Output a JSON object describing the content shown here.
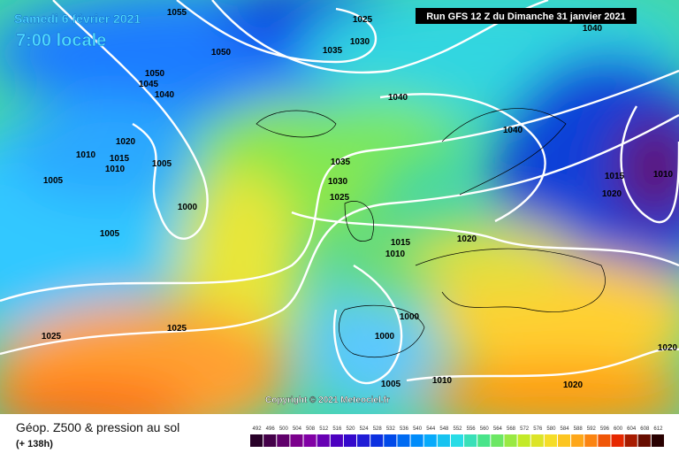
{
  "header": {
    "date": "Samedi 6 février 2021",
    "time": "7:00 locale",
    "run": "Run GFS 12 Z du Dimanche 31 janvier 2021"
  },
  "map": {
    "isobar_labels": [
      "1055",
      "1025",
      "1030",
      "1035",
      "1050",
      "1040",
      "1050",
      "1045",
      "1040",
      "1040",
      "1040",
      "1020",
      "1010",
      "1015",
      "1010",
      "1005",
      "1005",
      "1000",
      "1005",
      "1035",
      "1030",
      "1025",
      "1015",
      "1010",
      "1020",
      "1020",
      "1015",
      "1010",
      "1000",
      "1000",
      "1025",
      "1025",
      "1020",
      "1005",
      "1010",
      "1020"
    ],
    "copyright": "Copyright © 2021 Meteociel.fr"
  },
  "legend": {
    "title": "Géop. Z500 & pression au sol",
    "lead_time": "(+ 138h)",
    "scale": [
      "492",
      "496",
      "500",
      "504",
      "508",
      "512",
      "516",
      "520",
      "524",
      "528",
      "532",
      "536",
      "540",
      "544",
      "548",
      "552",
      "556",
      "560",
      "564",
      "568",
      "572",
      "576",
      "580",
      "584",
      "588",
      "592",
      "596",
      "600",
      "604",
      "608",
      "612"
    ]
  }
}
